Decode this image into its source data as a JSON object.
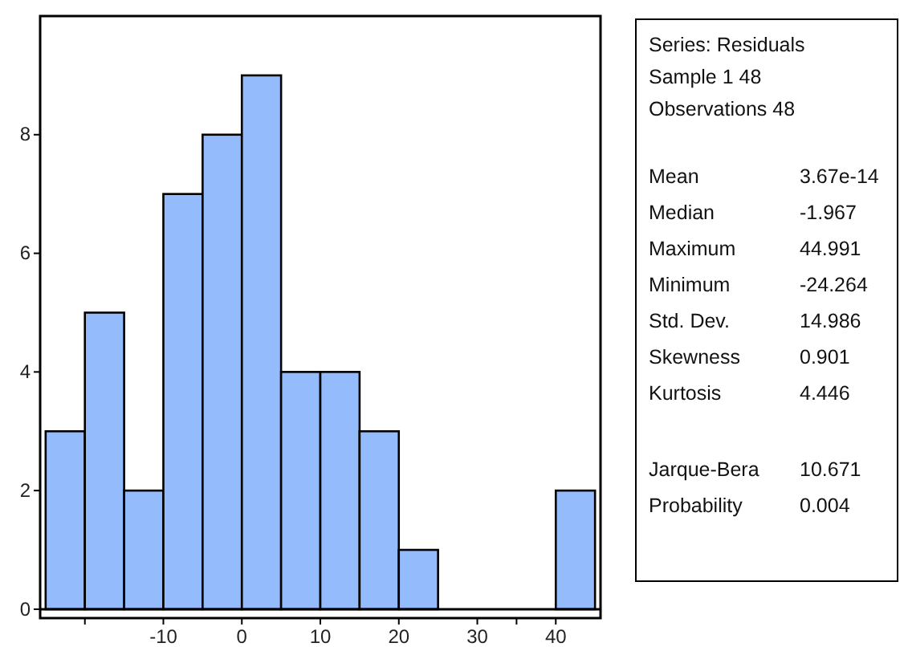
{
  "chart_data": {
    "type": "histogram",
    "bins": [
      -25,
      -20,
      -15,
      -10,
      -5,
      0,
      5,
      10,
      15,
      20,
      25,
      30,
      35,
      40,
      45
    ],
    "values": [
      3,
      5,
      2,
      7,
      8,
      9,
      4,
      4,
      3,
      1,
      0,
      0,
      0,
      2
    ],
    "color": "#94bbfb",
    "xlim": [
      -25.7,
      45.7
    ],
    "ylim": [
      -0.15,
      10
    ],
    "xticks": [
      {
        "value": -20,
        "label": null
      },
      -10,
      0,
      10,
      20,
      30,
      {
        "value": 35,
        "label": null
      },
      40
    ],
    "yticks": [
      0,
      2,
      4,
      6,
      8
    ],
    "annotations": [
      "Series: Residuals",
      "Sample 1 48",
      "Observations 48",
      "Mean",
      "3.67e-14",
      "Median",
      "-1.967",
      "Maximum",
      "44.991",
      "Minimum",
      "-24.264",
      "Std. Dev.",
      "14.986",
      "Skewness",
      "0.901",
      "Kurtosis",
      "4.446",
      "Jarque-Bera",
      "10.671",
      "Probability",
      "0.004"
    ]
  }
}
